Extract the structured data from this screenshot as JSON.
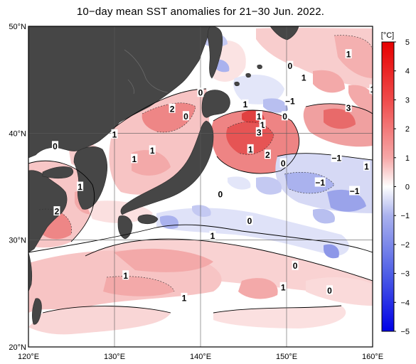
{
  "title": "10−day mean SST anomalies for 21−30 Jun. 2022.",
  "map": {
    "lon_ticks": [
      "120°E",
      "130°E",
      "140°E",
      "150°E",
      "160°E"
    ],
    "lat_ticks": [
      "50°N",
      "40°N",
      "30°N",
      "20°N"
    ],
    "lon_range": [
      120,
      160
    ],
    "lat_range": [
      20,
      50
    ],
    "land_color": "#464646",
    "grid": true
  },
  "colorbar": {
    "unit": "[°C]",
    "ticks": [
      "5",
      "4",
      "3",
      "2",
      "1",
      "0",
      "−1",
      "−2",
      "−3",
      "−4",
      "−5"
    ],
    "max_color": "#e60000",
    "min_color": "#0000e6"
  },
  "contour_labels": [
    {
      "text": "1",
      "lon": 157.2,
      "lat": 47.4
    },
    {
      "text": "0",
      "lon": 150.4,
      "lat": 46.3
    },
    {
      "text": "1",
      "lon": 152.0,
      "lat": 45.2
    },
    {
      "text": "1",
      "lon": 160.0,
      "lat": 44.1
    },
    {
      "text": "0",
      "lon": 140.0,
      "lat": 43.8
    },
    {
      "text": "1",
      "lon": 145.2,
      "lat": 42.7
    },
    {
      "text": "−1",
      "lon": 150.4,
      "lat": 43.0
    },
    {
      "text": "3",
      "lon": 157.2,
      "lat": 42.4
    },
    {
      "text": "2",
      "lon": 136.7,
      "lat": 42.3
    },
    {
      "text": "0",
      "lon": 138.3,
      "lat": 41.6
    },
    {
      "text": "1",
      "lon": 146.8,
      "lat": 41.6
    },
    {
      "text": "0",
      "lon": 149.8,
      "lat": 41.6
    },
    {
      "text": "1",
      "lon": 147.2,
      "lat": 40.8
    },
    {
      "text": "3",
      "lon": 146.8,
      "lat": 40.1
    },
    {
      "text": "1",
      "lon": 130.0,
      "lat": 39.9
    },
    {
      "text": "0",
      "lon": 123.1,
      "lat": 38.8
    },
    {
      "text": "1",
      "lon": 134.4,
      "lat": 38.4
    },
    {
      "text": "1",
      "lon": 145.8,
      "lat": 38.5
    },
    {
      "text": "2",
      "lon": 147.8,
      "lat": 38.0
    },
    {
      "text": "1",
      "lon": 132.3,
      "lat": 37.6
    },
    {
      "text": "−1",
      "lon": 155.8,
      "lat": 37.7
    },
    {
      "text": "0",
      "lon": 149.6,
      "lat": 37.2
    },
    {
      "text": "1",
      "lon": 159.3,
      "lat": 36.9
    },
    {
      "text": "−1",
      "lon": 153.9,
      "lat": 35.4
    },
    {
      "text": "1",
      "lon": 126.0,
      "lat": 35.0
    },
    {
      "text": "−1",
      "lon": 157.9,
      "lat": 34.6
    },
    {
      "text": "0",
      "lon": 142.3,
      "lat": 34.3
    },
    {
      "text": "2",
      "lon": 123.3,
      "lat": 32.7
    },
    {
      "text": "0",
      "lon": 145.7,
      "lat": 31.8
    },
    {
      "text": "1",
      "lon": 141.4,
      "lat": 30.4
    },
    {
      "text": "0",
      "lon": 151.0,
      "lat": 27.6
    },
    {
      "text": "1",
      "lon": 131.3,
      "lat": 26.7
    },
    {
      "text": "1",
      "lon": 149.6,
      "lat": 25.6
    },
    {
      "text": "0",
      "lon": 155.0,
      "lat": 25.3
    },
    {
      "text": "1",
      "lon": 138.1,
      "lat": 24.6
    }
  ]
}
